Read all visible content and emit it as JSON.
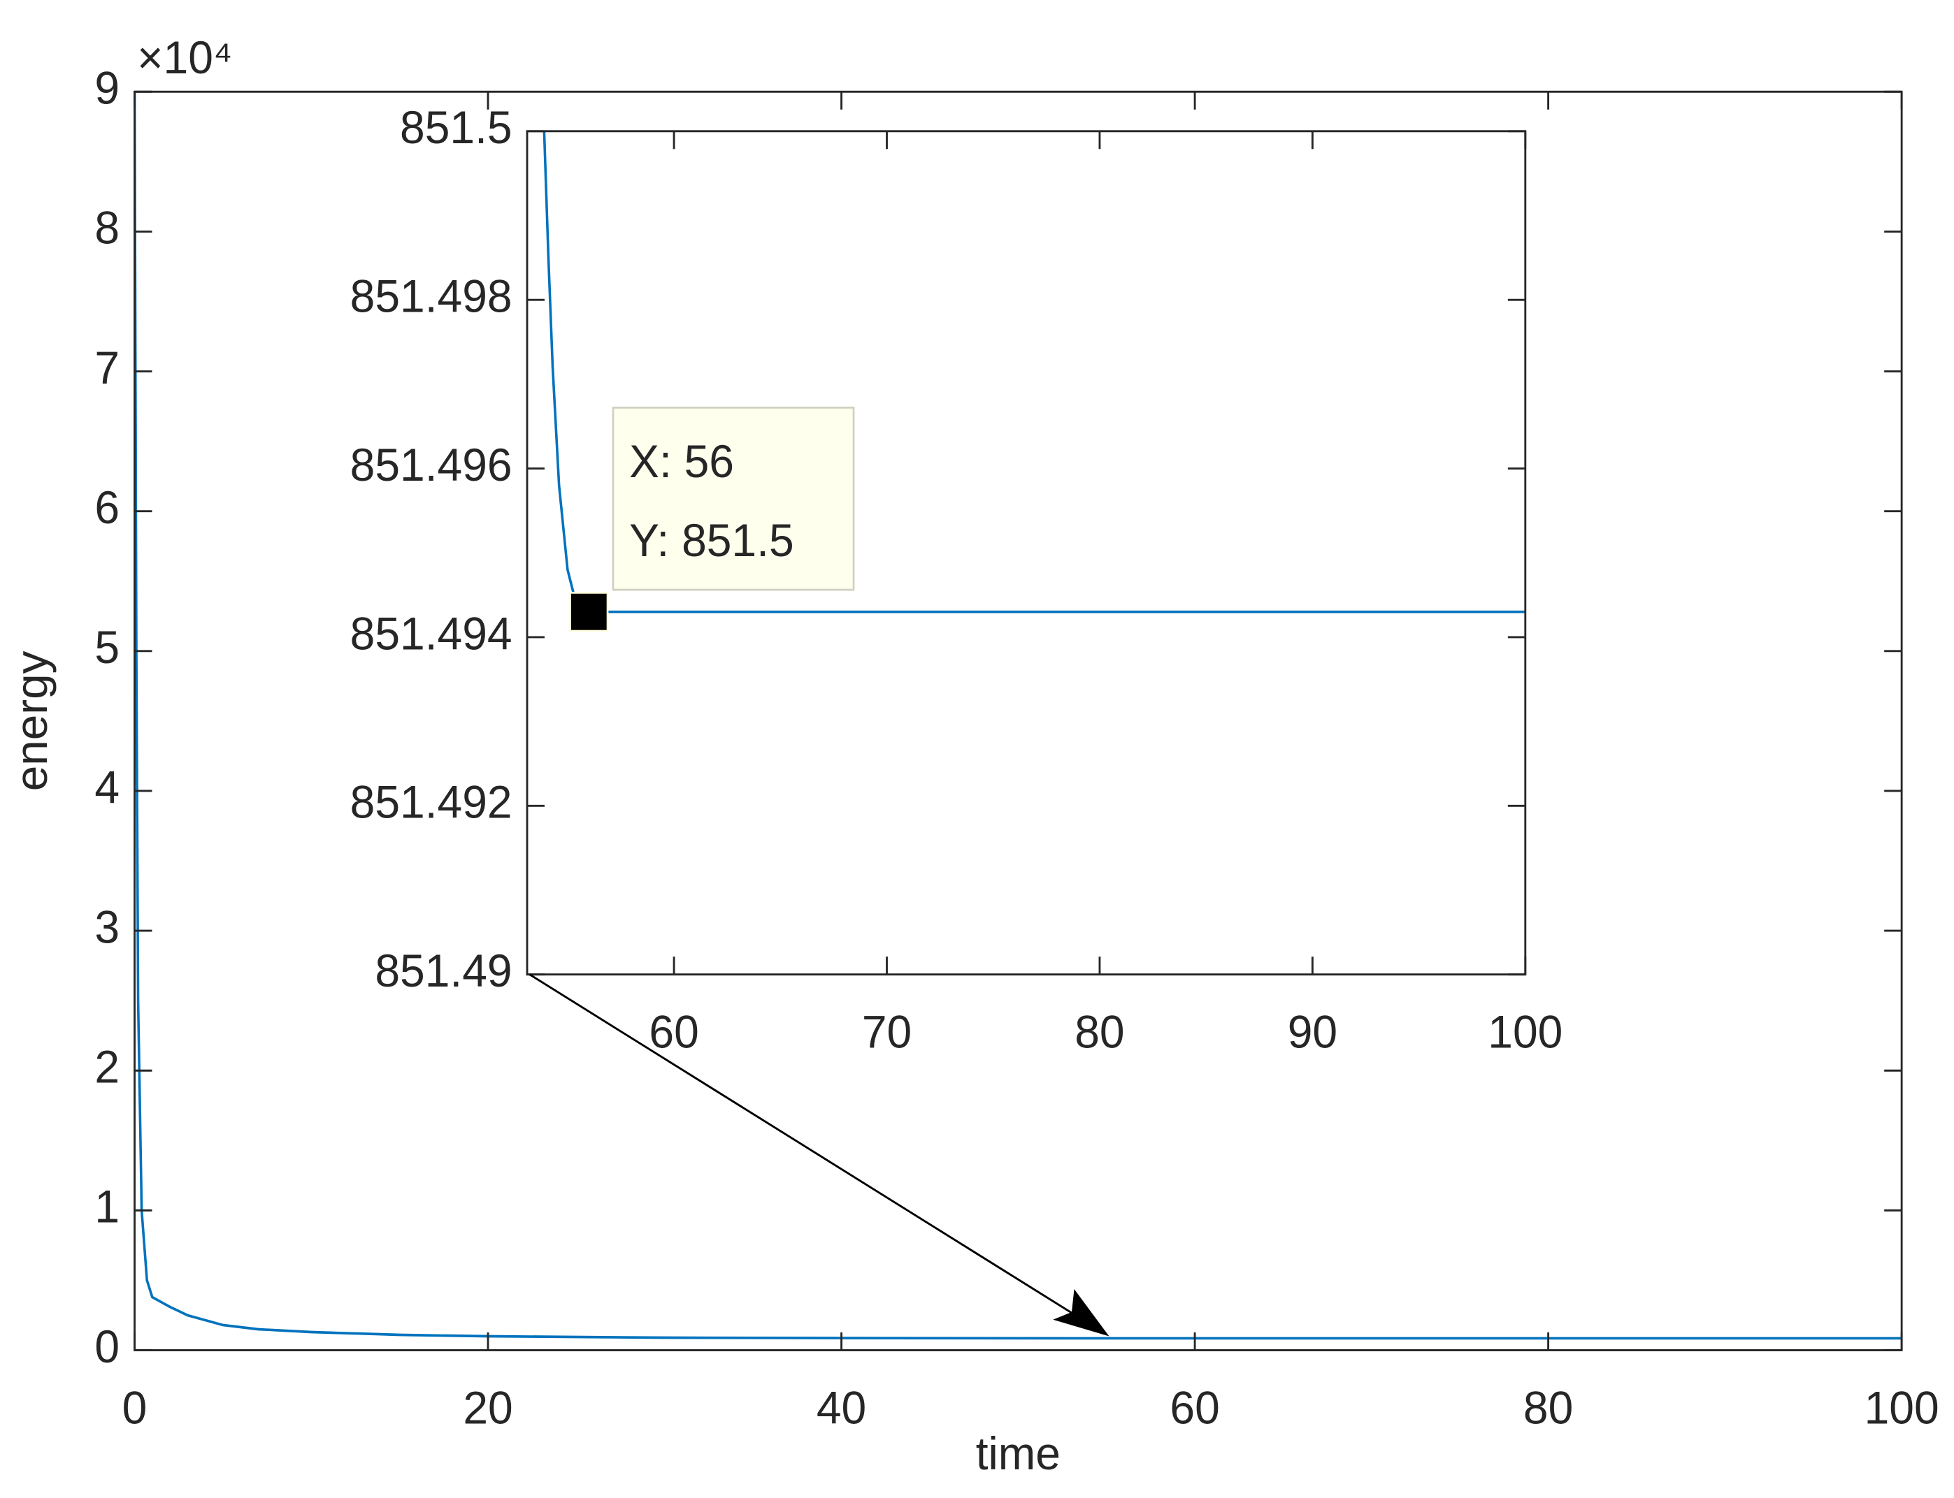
{
  "chart_data": [
    {
      "type": "line",
      "x_label": "time",
      "y_label": "energy",
      "y_multiplier": "×10⁴",
      "x": [
        0,
        0.05,
        0.1,
        0.2,
        0.4,
        0.7,
        1,
        2,
        3,
        5,
        7,
        10,
        15,
        20,
        30,
        40,
        55,
        100
      ],
      "values": [
        9,
        7,
        5,
        2.5,
        1,
        0.5,
        0.38,
        0.31,
        0.25,
        0.18,
        0.15,
        0.13,
        0.11,
        0.1,
        0.09,
        0.087,
        0.0851,
        0.0851
      ],
      "color": "#0072bd",
      "xlim": [
        0,
        100
      ],
      "xticks": [
        0,
        20,
        40,
        60,
        80,
        100
      ],
      "ylim": [
        0,
        9
      ],
      "yticks": [
        0,
        1,
        2,
        3,
        4,
        5,
        6,
        7,
        8,
        9
      ]
    },
    {
      "type": "line",
      "x": [
        53.9,
        54.1,
        54.3,
        54.6,
        55,
        55.5,
        56,
        100
      ],
      "values": [
        851.5,
        851.4985,
        851.4972,
        851.4958,
        851.4948,
        851.4943,
        851.4943,
        851.4943
      ],
      "color": "#0072bd",
      "xlim": [
        53.1,
        100
      ],
      "xticks": [
        60,
        70,
        80,
        90,
        100
      ],
      "ylim": [
        851.49,
        851.5
      ],
      "yticks": [
        851.49,
        851.492,
        851.494,
        851.496,
        851.498,
        851.5
      ],
      "datatip": {
        "x": 56,
        "y": 851.4943,
        "labels": [
          "X: 56",
          "Y: 851.5"
        ]
      }
    }
  ]
}
